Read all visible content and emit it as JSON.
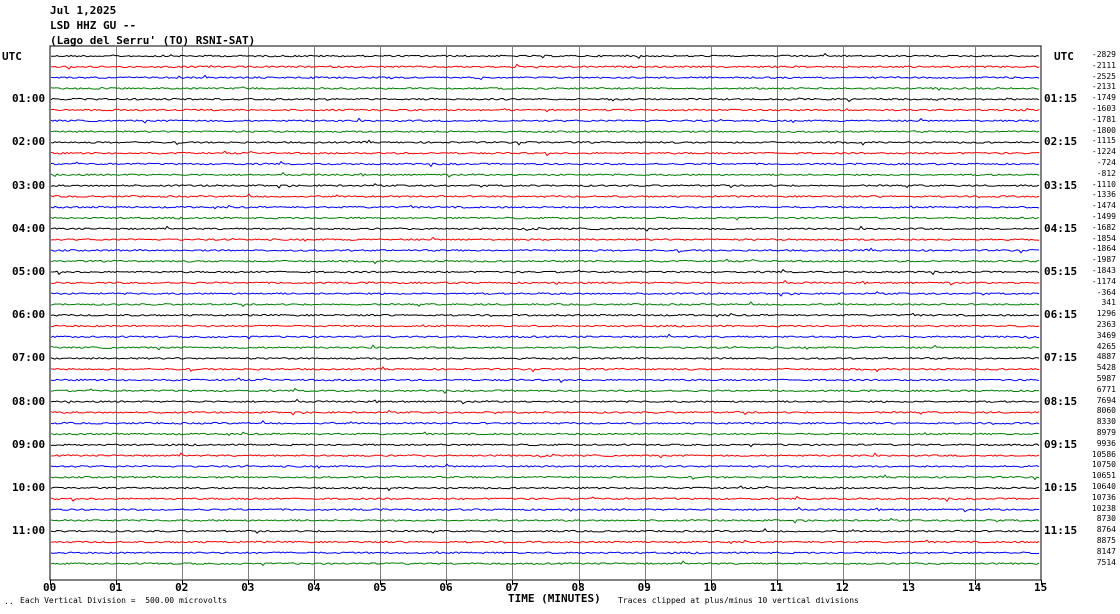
{
  "header": {
    "date": "Jul 1,2025",
    "station": "LSD HHZ GU --",
    "location": "(Lago del Serru' (TO) RSNI-SAT)"
  },
  "left_axis": {
    "unit": "UTC",
    "hour_labels": [
      "01:00",
      "02:00",
      "03:00",
      "04:00",
      "05:00",
      "06:00",
      "07:00",
      "08:00",
      "09:00",
      "10:00",
      "11:00"
    ]
  },
  "right_axis": {
    "unit": "UTC",
    "hour_labels": [
      "01:15",
      "02:15",
      "03:15",
      "04:15",
      "05:15",
      "06:15",
      "07:15",
      "08:15",
      "09:15",
      "10:15",
      "11:15"
    ]
  },
  "footer": {
    "corner_mark": "..",
    "vertical_division": "Each Vertical Division =  500.00 microvolts",
    "xlabel": "TIME (MINUTES)",
    "clip_note": "Traces clipped at plus/minus 10 vertical divisions"
  },
  "colors": {
    "trace_cycle": [
      "#000000",
      "#ff0000",
      "#0000ff",
      "#008000"
    ],
    "grid": "#000000"
  },
  "chart_data": {
    "type": "line",
    "x_ticks": [
      "00",
      "01",
      "02",
      "03",
      "04",
      "05",
      "06",
      "07",
      "08",
      "09",
      "10",
      "11",
      "12",
      "13",
      "14",
      "15"
    ],
    "xlim": [
      0,
      15
    ],
    "trace_count": 48,
    "offsets": [
      "-2829",
      "-2111",
      "-2525",
      "-2131",
      "-1749",
      "-1603",
      "-1781",
      "-1800",
      "-1115",
      "-1224",
      "-724",
      "-812",
      "-1110",
      "-1336",
      "-1474",
      "-1499",
      "-1682",
      "-1854",
      "-1864",
      "-1987",
      "-1843",
      "-1174",
      "-364",
      "341",
      "1296",
      "2363",
      "3469",
      "4265",
      "4887",
      "5428",
      "5987",
      "6771",
      "7694",
      "8060",
      "8330",
      "8979",
      "9936",
      "10586",
      "10750",
      "10651",
      "10640",
      "10736",
      "10238",
      "8730",
      "8764",
      "8875",
      "8147",
      "7514"
    ]
  }
}
